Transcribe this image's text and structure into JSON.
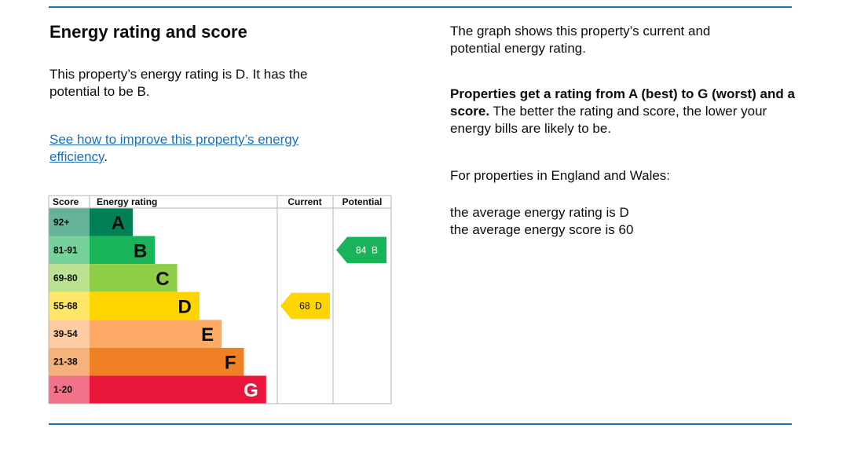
{
  "heading": "Energy rating and score",
  "intro": "This property’s energy rating is D. It has the potential to be B.",
  "link": {
    "text": "See how to improve this property’s energy efficiency",
    "after": "."
  },
  "chart": {
    "headers": [
      "Score",
      "Energy rating",
      "Current",
      "Potential"
    ],
    "bands": [
      {
        "score": "92+",
        "letter": "A",
        "color": "#008054"
      },
      {
        "score": "81-91",
        "letter": "B",
        "color": "#19b459"
      },
      {
        "score": "69-80",
        "letter": "C",
        "color": "#8dce46"
      },
      {
        "score": "55-68",
        "letter": "D",
        "color": "#ffd500"
      },
      {
        "score": "39-54",
        "letter": "E",
        "color": "#fcaa65"
      },
      {
        "score": "21-38",
        "letter": "F",
        "color": "#ef8023"
      },
      {
        "score": "1-20",
        "letter": "G",
        "color": "#e9153b"
      }
    ],
    "current": {
      "score": 68,
      "letter": "D"
    },
    "potential": {
      "score": 84,
      "letter": "B"
    }
  },
  "side": {
    "p1": "The graph shows this property’s current and potential energy rating.",
    "p2_bold": "Properties get a rating from A (best) to G (worst) and a score.",
    "p2_rest": " The better the rating and score, the lower your energy bills are likely to be.",
    "p3": "For properties in England and Wales:",
    "avg": [
      "the average energy rating is D",
      "the average energy score is 60"
    ]
  }
}
